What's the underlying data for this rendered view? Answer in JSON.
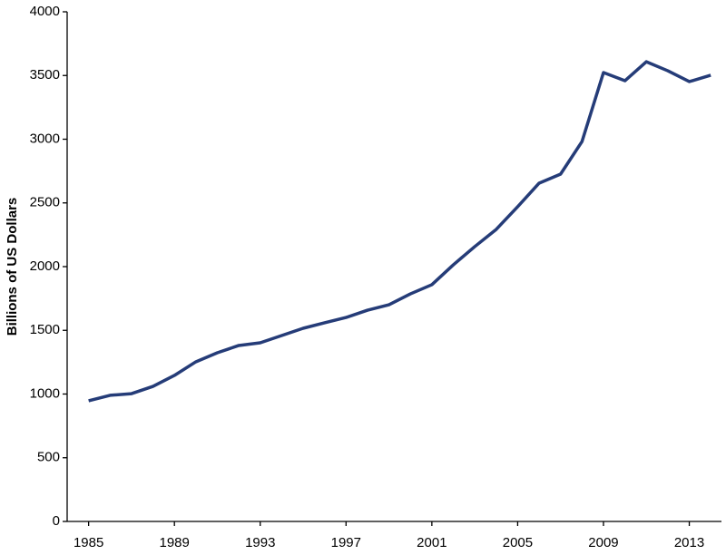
{
  "chart_data": {
    "type": "line",
    "y_label": "Billions  of US Dollars",
    "x": [
      1985,
      1986,
      1987,
      1988,
      1989,
      1990,
      1991,
      1992,
      1993,
      1994,
      1995,
      1996,
      1997,
      1998,
      1999,
      2000,
      2001,
      2002,
      2003,
      2004,
      2005,
      2006,
      2007,
      2008,
      2009,
      2010,
      2011,
      2012,
      2013,
      2014
    ],
    "series": [
      {
        "color": "#253c78",
        "values": [
          947,
          990,
          1003,
          1060,
          1146,
          1253,
          1324,
          1381,
          1402,
          1459,
          1516,
          1559,
          1601,
          1658,
          1701,
          1786,
          1858,
          2014,
          2157,
          2292,
          2470,
          2655,
          2726,
          2982,
          3523,
          3459,
          3608,
          3537,
          3452,
          3502
        ]
      }
    ],
    "xlim": [
      1984,
      2014.5
    ],
    "xticks": [
      1985,
      1989,
      1993,
      1997,
      2001,
      2005,
      2009,
      2013
    ],
    "ylim": [
      0,
      4000
    ],
    "yticks": [
      0,
      500,
      1000,
      1500,
      2000,
      2500,
      3000,
      3500,
      4000
    ],
    "grid": false
  }
}
